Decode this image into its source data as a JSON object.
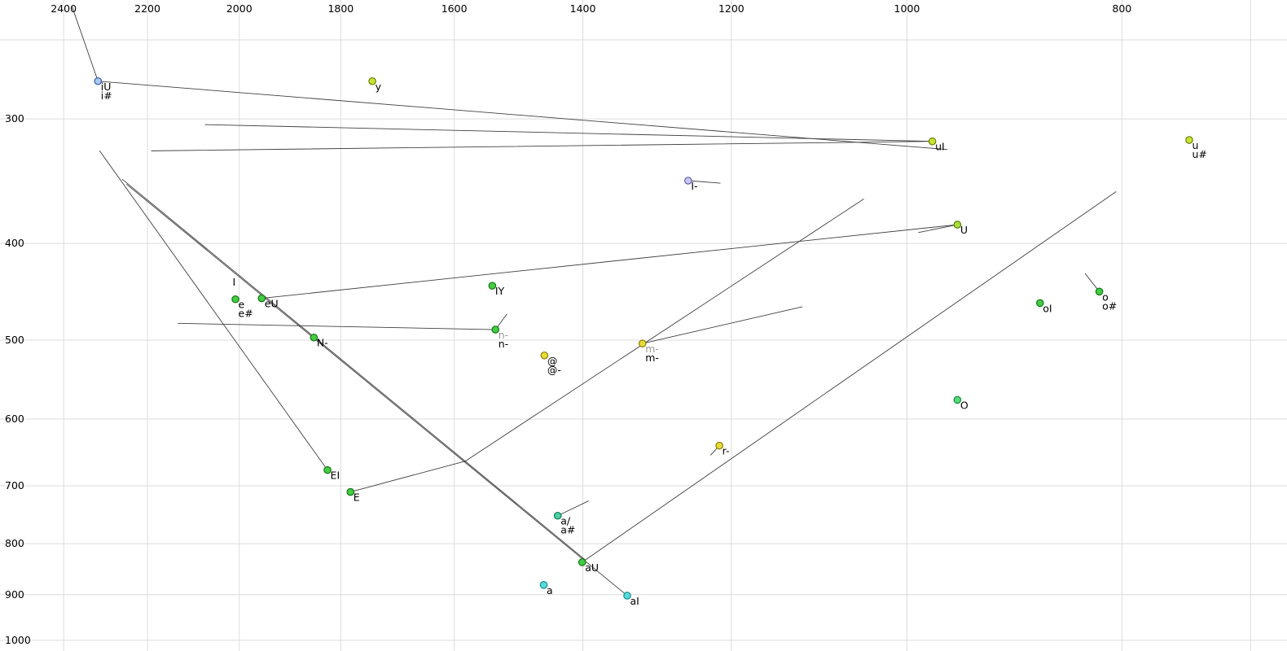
{
  "chart_data": {
    "type": "scatter",
    "title": "",
    "scale": "log-log",
    "background": "#ffffff",
    "grid_color": "#dcdcdc",
    "line_color": "#404040",
    "tick_color": "#000000",
    "x_axis": {
      "position": "top",
      "reversed": true,
      "range": [
        2564,
        674
      ],
      "tick_labels": [
        "2400",
        "2200",
        "2000",
        "1800",
        "1600",
        "1400",
        "1200",
        "1000",
        "800"
      ],
      "ticks": [
        2400,
        2200,
        2000,
        1800,
        1600,
        1400,
        1200,
        1000,
        800
      ],
      "extra_gridlines": [
        700
      ]
    },
    "y_axis": {
      "position": "left",
      "range": [
        228,
        1025
      ],
      "tick_labels": [
        "300",
        "400",
        "500",
        "600",
        "700",
        "800",
        "900",
        "1000"
      ],
      "ticks": [
        300,
        400,
        500,
        600,
        700,
        800,
        900,
        1000
      ],
      "extra_gridlines": [
        250
      ]
    },
    "points": [
      {
        "name": "iU",
        "f2": 2316,
        "f1": 275,
        "fill": "#a9c9f2",
        "stroke": "#3957a8",
        "labels": [
          {
            "t": "iU"
          },
          {
            "t": "i#"
          }
        ]
      },
      {
        "name": "y",
        "f2": 1742,
        "f1": 275,
        "fill": "#c6e437",
        "stroke": "#6d7f00",
        "labels": [
          {
            "t": "y"
          }
        ]
      },
      {
        "name": "uI",
        "f2": 974,
        "f1": 316,
        "fill": "#c6e437",
        "stroke": "#6d7f00",
        "labels": [
          {
            "t": "uI"
          }
        ]
      },
      {
        "name": "u",
        "f2": 746,
        "f1": 315,
        "fill": "#c6e437",
        "stroke": "#6d7f00",
        "labels": [
          {
            "t": "u"
          },
          {
            "t": "u#"
          }
        ]
      },
      {
        "name": "I-",
        "f2": 1255,
        "f1": 346,
        "fill": "#c9c9f2",
        "stroke": "#5d5db0",
        "labels": [
          {
            "t": "I-"
          }
        ]
      },
      {
        "name": "U",
        "f2": 949,
        "f1": 383,
        "fill": "#a5e03a",
        "stroke": "#567f00",
        "labels": [
          {
            "t": "U"
          }
        ]
      },
      {
        "name": "IY",
        "f2": 1538,
        "f1": 441,
        "fill": "#44cc44",
        "stroke": "#117711",
        "labels": [
          {
            "t": "IY"
          }
        ]
      },
      {
        "name": "I",
        "f2": 2020,
        "f1": 432,
        "no_dot": true,
        "labels": [
          {
            "t": "I"
          }
        ]
      },
      {
        "name": "e",
        "f2": 2008,
        "f1": 455,
        "fill": "#44cc44",
        "stroke": "#117711",
        "labels": [
          {
            "t": "e"
          },
          {
            "t": "e#"
          }
        ]
      },
      {
        "name": "eU",
        "f2": 1954,
        "f1": 454,
        "fill": "#44cc44",
        "stroke": "#117711",
        "labels": [
          {
            "t": "eU"
          }
        ]
      },
      {
        "name": "N-",
        "f2": 1851,
        "f1": 497,
        "fill": "#44cc44",
        "stroke": "#117711",
        "labels": [
          {
            "t": "N-"
          }
        ]
      },
      {
        "name": "n-",
        "f2": 1533,
        "f1": 488,
        "fill": "#44cc44",
        "stroke": "#117711",
        "labels": [
          {
            "t": "n-",
            "c": "#9a9a9a"
          },
          {
            "t": "n-"
          }
        ]
      },
      {
        "name": "@",
        "f2": 1457,
        "f1": 518,
        "fill": "#e8dc3c",
        "stroke": "#8a7c00",
        "labels": [
          {
            "t": "@"
          },
          {
            "t": "@-"
          }
        ]
      },
      {
        "name": "m-",
        "f2": 1316,
        "f1": 504,
        "fill": "#e8dc3c",
        "stroke": "#8a7c00",
        "labels": [
          {
            "t": "m-",
            "c": "#9a9a9a"
          },
          {
            "t": "m-"
          }
        ]
      },
      {
        "name": "oI",
        "f2": 871,
        "f1": 459,
        "fill": "#44cc44",
        "stroke": "#117711",
        "labels": [
          {
            "t": "oI"
          }
        ]
      },
      {
        "name": "o",
        "f2": 819,
        "f1": 447,
        "fill": "#44cc44",
        "stroke": "#117711",
        "labels": [
          {
            "t": "o"
          },
          {
            "t": "o#"
          }
        ]
      },
      {
        "name": "O",
        "f2": 949,
        "f1": 574,
        "fill": "#55d877",
        "stroke": "#128a3c",
        "labels": [
          {
            "t": "O"
          }
        ]
      },
      {
        "name": "r-",
        "f2": 1215,
        "f1": 638,
        "fill": "#e8dc3c",
        "stroke": "#8a7c00",
        "labels": [
          {
            "t": "r-"
          }
        ]
      },
      {
        "name": "EI",
        "f2": 1825,
        "f1": 675,
        "fill": "#44cc44",
        "stroke": "#117711",
        "labels": [
          {
            "t": "EI"
          }
        ]
      },
      {
        "name": "E",
        "f2": 1782,
        "f1": 710,
        "fill": "#44cc44",
        "stroke": "#117711",
        "labels": [
          {
            "t": "E"
          }
        ]
      },
      {
        "name": "a/",
        "f2": 1437,
        "f1": 750,
        "fill": "#4fd0a0",
        "stroke": "#0c7a58",
        "labels": [
          {
            "t": "a/"
          },
          {
            "t": "a#"
          }
        ]
      },
      {
        "name": "aU",
        "f2": 1401,
        "f1": 835,
        "fill": "#44cc44",
        "stroke": "#117711",
        "labels": [
          {
            "t": "aU"
          }
        ]
      },
      {
        "name": "a",
        "f2": 1458,
        "f1": 880,
        "fill": "#5adbdb",
        "stroke": "#0f8f8f",
        "labels": [
          {
            "t": "a"
          }
        ]
      },
      {
        "name": "aI",
        "f2": 1337,
        "f1": 902,
        "fill": "#5adbdb",
        "stroke": "#0f8f8f",
        "labels": [
          {
            "t": "aI"
          }
        ]
      }
    ],
    "lines": [
      {
        "from": [
          2380,
          231
        ],
        "to": [
          2316,
          275
        ]
      },
      {
        "from": [
          2316,
          275
        ],
        "to": [
          959,
          322
        ]
      },
      {
        "from": [
          2072,
          304
        ],
        "to": [
          974,
          316
        ]
      },
      {
        "from": [
          2191,
          323
        ],
        "to": [
          974,
          316
        ]
      },
      {
        "from": [
          2312,
          323
        ],
        "to": [
          1825,
          675
        ]
      },
      {
        "from": [
          2258,
          345
        ],
        "to": [
          1397,
          830
        ]
      },
      {
        "from": [
          2248,
          349
        ],
        "to": [
          1337,
          902
        ]
      },
      {
        "from": [
          1954,
          454
        ],
        "to": [
          949,
          383
        ]
      },
      {
        "from": [
          1401,
          835
        ],
        "to": [
          805,
          355
        ]
      },
      {
        "from": [
          1316,
          504
        ],
        "to": [
          1115,
          463
        ]
      },
      {
        "from": [
          1255,
          346
        ],
        "to": [
          1214,
          348
        ]
      },
      {
        "from": [
          2131,
          481
        ],
        "to": [
          1533,
          488
        ]
      },
      {
        "from": [
          831,
          429
        ],
        "to": [
          819,
          447
        ]
      },
      {
        "from": [
          1437,
          750
        ],
        "to": [
          1392,
          725
        ]
      },
      {
        "from": [
          1782,
          710
        ],
        "to": [
          1581,
          661
        ]
      },
      {
        "from": [
          1583,
          662
        ],
        "to": [
          1046,
          361
        ]
      },
      {
        "from": [
          1533,
          488
        ],
        "to": [
          1515,
          471
        ]
      },
      {
        "from": [
          1215,
          638
        ],
        "to": [
          1226,
          652
        ]
      },
      {
        "from": [
          988,
          390
        ],
        "to": [
          949,
          383
        ]
      }
    ]
  }
}
